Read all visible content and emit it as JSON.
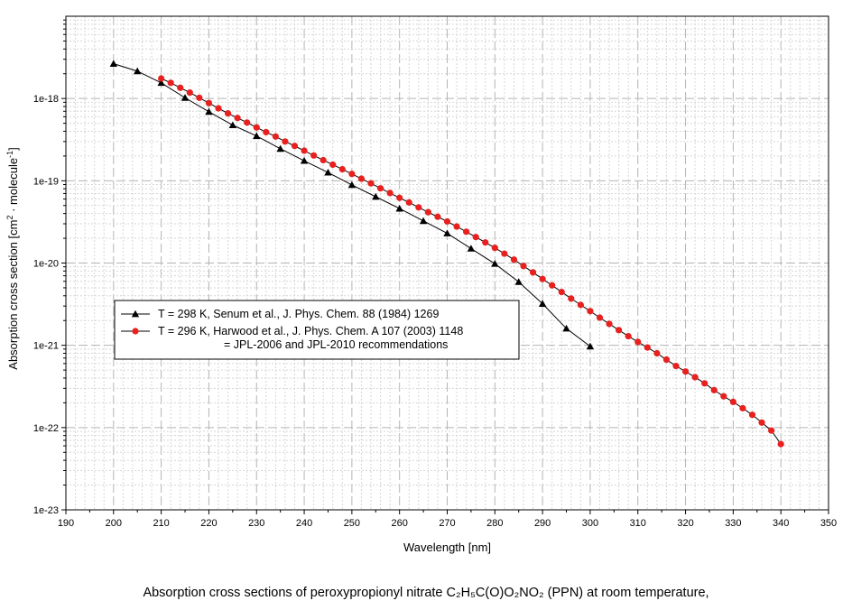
{
  "chart_data": {
    "type": "line",
    "xlabel": "Wavelength [nm]",
    "ylabel": {
      "prefix": "Absorption cross section [cm",
      "sup1": "2",
      "mid": " molecule",
      "sup2": "-1",
      "suffix": "]"
    },
    "xlim": [
      190,
      350
    ],
    "ylim": [
      1e-23,
      1e-17
    ],
    "y_scale": "log",
    "grid": true,
    "legend_position": "center-left",
    "x_ticks": [
      190,
      200,
      210,
      220,
      230,
      240,
      250,
      260,
      270,
      280,
      290,
      300,
      310,
      320,
      330,
      340,
      350
    ],
    "y_ticks": [
      {
        "value": 1e-18,
        "label": "1e-18"
      },
      {
        "value": 1e-19,
        "label": "1e-19"
      },
      {
        "value": 1e-20,
        "label": "1e-20"
      },
      {
        "value": 1e-21,
        "label": "1e-21"
      },
      {
        "value": 1e-22,
        "label": "1e-22"
      },
      {
        "value": 1e-23,
        "label": "1e-23"
      }
    ],
    "series": [
      {
        "name": "T = 298 K, Senum et al., J. Phys. Chem. 88 (1984) 1269",
        "name_line2": "",
        "color": "#000000",
        "marker": "triangle",
        "x": [
          200,
          205,
          210,
          215,
          220,
          225,
          230,
          235,
          240,
          245,
          250,
          255,
          260,
          265,
          270,
          275,
          280,
          285,
          290,
          295,
          300
        ],
        "y": [
          2.65e-18,
          2.15e-18,
          1.55e-18,
          1.02e-18,
          6.9e-19,
          4.75e-19,
          3.5e-19,
          2.45e-19,
          1.75e-19,
          1.26e-19,
          8.9e-20,
          6.4e-20,
          4.6e-20,
          3.25e-20,
          2.3e-20,
          1.5e-20,
          9.8e-21,
          5.9e-21,
          3.2e-21,
          1.6e-21,
          9.7e-22
        ]
      },
      {
        "name": "T = 296 K, Harwood et al., J. Phys. Chem. A 107 (2003) 1148",
        "name_line2": "= JPL-2006 and JPL-2010 recommendations",
        "color": "#e8201e",
        "marker": "circle",
        "x": [
          210,
          212,
          214,
          216,
          218,
          220,
          222,
          224,
          226,
          228,
          230,
          232,
          234,
          236,
          238,
          240,
          242,
          244,
          246,
          248,
          250,
          252,
          254,
          256,
          258,
          260,
          262,
          264,
          266,
          268,
          270,
          272,
          274,
          276,
          278,
          280,
          282,
          284,
          286,
          288,
          290,
          292,
          294,
          296,
          298,
          300,
          302,
          304,
          306,
          308,
          310,
          312,
          314,
          316,
          318,
          320,
          322,
          324,
          326,
          328,
          330,
          332,
          334,
          336,
          338,
          340
        ],
        "y": [
          1.75e-18,
          1.55e-18,
          1.35e-18,
          1.18e-18,
          1.02e-18,
          8.8e-19,
          7.6e-19,
          6.6e-19,
          5.8e-19,
          5.1e-19,
          4.45e-19,
          3.9e-19,
          3.45e-19,
          3e-19,
          2.65e-19,
          2.32e-19,
          2.03e-19,
          1.78e-19,
          1.57e-19,
          1.38e-19,
          1.21e-19,
          1.06e-19,
          9.3e-20,
          8.1e-20,
          7.1e-20,
          6.2e-20,
          5.45e-20,
          4.75e-20,
          4.15e-20,
          3.65e-20,
          3.2e-20,
          2.78e-20,
          2.4e-20,
          2.07e-20,
          1.78e-20,
          1.53e-20,
          1.3e-20,
          1.1e-20,
          9.2e-21,
          7.7e-21,
          6.4e-21,
          5.35e-21,
          4.45e-21,
          3.7e-21,
          3.1e-21,
          2.6e-21,
          2.17e-21,
          1.82e-21,
          1.53e-21,
          1.29e-21,
          1.1e-21,
          9.4e-22,
          8e-22,
          6.7e-22,
          5.6e-22,
          4.8e-22,
          4.1e-22,
          3.45e-22,
          2.85e-22,
          2.4e-22,
          2.05e-22,
          1.72e-22,
          1.43e-22,
          1.15e-22,
          9.2e-23,
          6.3e-23
        ]
      }
    ]
  },
  "caption": {
    "text": "Absorption cross sections of peroxypropionyl nitrate C₂H₅C(O)O₂NO₂ (PPN) at room temperature,"
  },
  "colors": {
    "grid_major": "#b4b4b4",
    "grid_minor": "#d6d6d6",
    "series_black": "#000000",
    "series_red": "#e8201e"
  }
}
